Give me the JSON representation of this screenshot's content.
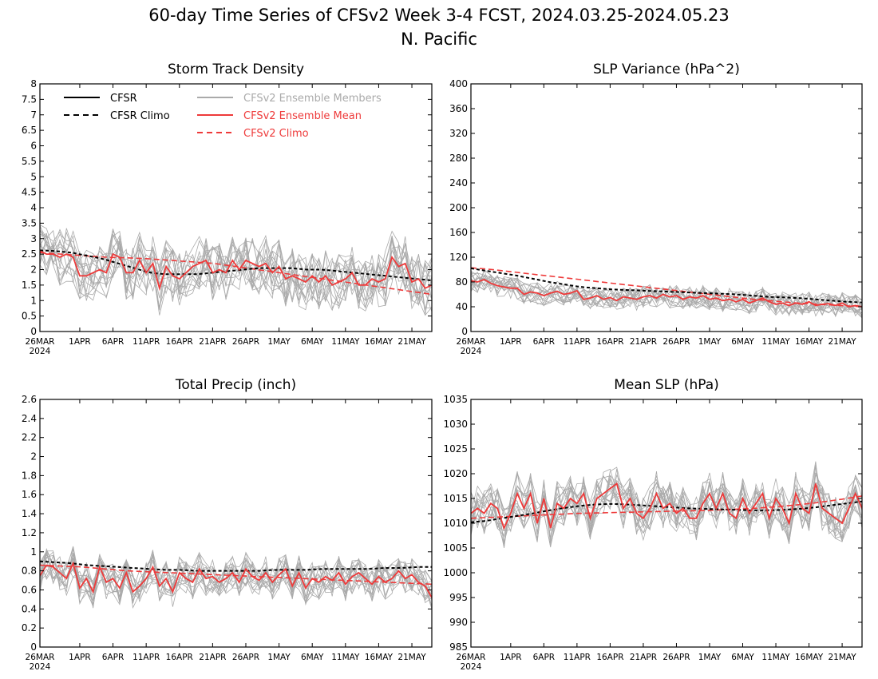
{
  "figure": {
    "title": "60-day Time Series of CFSv2 Week 3-4 FCST, 2024.03.25-2024.05.23",
    "subtitle": "N. Pacific"
  },
  "legend": {
    "entries": [
      {
        "label": "CFSR",
        "color": "#000000",
        "dashed": false
      },
      {
        "label": "CFSR Climo",
        "color": "#000000",
        "dashed": true
      },
      {
        "label": "CFSv2 Ensemble Members",
        "color": "#aaaaaa",
        "dashed": false
      },
      {
        "label": "CFSv2 Ensemble Mean",
        "color": "#ee3a3a",
        "dashed": false
      },
      {
        "label": "CFSv2 Climo",
        "color": "#ee3a3a",
        "dashed": true
      }
    ]
  },
  "x_axis": {
    "ticks": [
      {
        "day": 1,
        "label": "26MAR",
        "sublabel": "2024"
      },
      {
        "day": 7,
        "label": "1APR"
      },
      {
        "day": 12,
        "label": "6APR"
      },
      {
        "day": 17,
        "label": "11APR"
      },
      {
        "day": 22,
        "label": "16APR"
      },
      {
        "day": 27,
        "label": "21APR"
      },
      {
        "day": 32,
        "label": "26APR"
      },
      {
        "day": 37,
        "label": "1MAY"
      },
      {
        "day": 42,
        "label": "6MAY"
      },
      {
        "day": 47,
        "label": "11MAY"
      },
      {
        "day": 52,
        "label": "16MAY"
      },
      {
        "day": 57,
        "label": "21MAY"
      }
    ]
  },
  "colors": {
    "members": "#aaaaaa",
    "mean": "#ee3a3a",
    "cfsr": "#000000"
  },
  "chart_data": [
    {
      "type": "line",
      "title": "Storm Track Density",
      "ylim": [
        0,
        8
      ],
      "yticks": [
        "0",
        "0.5",
        "1",
        "1.5",
        "2",
        "2.5",
        "3",
        "3.5",
        "4",
        "4.5",
        "5",
        "5.5",
        "6",
        "6.5",
        "7",
        "7.5",
        "8"
      ],
      "ensemble_mean": [
        2.6,
        2.5,
        2.5,
        2.4,
        2.5,
        2.4,
        1.8,
        1.8,
        1.9,
        2.0,
        1.9,
        2.5,
        2.4,
        1.9,
        1.9,
        2.3,
        1.9,
        2.2,
        1.4,
        2.1,
        1.8,
        1.7,
        1.9,
        2.1,
        2.2,
        2.3,
        1.9,
        2.0,
        1.9,
        2.3,
        2.0,
        2.3,
        2.2,
        2.1,
        2.2,
        1.9,
        2.1,
        1.7,
        1.8,
        1.7,
        1.6,
        1.8,
        1.6,
        1.8,
        1.5,
        1.6,
        1.7,
        1.9,
        1.5,
        1.5,
        1.7,
        1.6,
        1.7,
        2.4,
        2.1,
        2.2,
        1.6,
        1.7,
        1.4,
        1.5
      ],
      "cfsr_climo": [
        2.62,
        2.6,
        2.55,
        2.45,
        2.35,
        2.2,
        2.05,
        1.9,
        1.85,
        1.85,
        1.85,
        1.9,
        1.95,
        2.0,
        2.05,
        2.05,
        2.05,
        2.0,
        2.0,
        1.95,
        1.9,
        1.85,
        1.8,
        1.75,
        1.7,
        1.65
      ],
      "cfsv2_climo": [
        2.55,
        2.5,
        2.45,
        2.4,
        2.38,
        2.35,
        2.3,
        2.25,
        2.2,
        2.1,
        2.0,
        1.9,
        1.8,
        1.7,
        1.6,
        1.5,
        1.4,
        1.3,
        1.2
      ],
      "member_spread": 0.9
    },
    {
      "type": "line",
      "title": "SLP Variance (hPa^2)",
      "ylim": [
        0,
        400
      ],
      "yticks": [
        "0",
        "40",
        "80",
        "120",
        "160",
        "200",
        "240",
        "280",
        "320",
        "360",
        "400"
      ],
      "ensemble_mean": [
        82,
        80,
        84,
        78,
        74,
        72,
        70,
        70,
        60,
        64,
        62,
        58,
        62,
        65,
        60,
        62,
        66,
        52,
        54,
        58,
        52,
        55,
        50,
        56,
        54,
        52,
        56,
        58,
        54,
        60,
        56,
        58,
        52,
        56,
        54,
        58,
        52,
        54,
        50,
        52,
        48,
        52,
        46,
        50,
        54,
        48,
        44,
        46,
        42,
        46,
        44,
        48,
        42,
        44,
        45,
        42,
        46,
        40,
        42,
        40
      ],
      "cfsr_climo": [
        102,
        98,
        94,
        90,
        85,
        80,
        76,
        72,
        70,
        68,
        67,
        66,
        65,
        64,
        63,
        62,
        61,
        60,
        58,
        56,
        55,
        54,
        52,
        50,
        48,
        47
      ],
      "cfsv2_climo": [
        103,
        100,
        96,
        92,
        88,
        84,
        80,
        76,
        72,
        68,
        64,
        60,
        56,
        52,
        49,
        46,
        44,
        42,
        40
      ],
      "member_spread": 18
    },
    {
      "type": "line",
      "title": "Total Precip (inch)",
      "ylim": [
        0,
        2.6
      ],
      "yticks": [
        "0",
        "0.2",
        "0.4",
        "0.6",
        "0.8",
        "1",
        "1.2",
        "1.4",
        "1.6",
        "1.8",
        "2",
        "2.2",
        "2.4",
        "2.6"
      ],
      "ensemble_mean": [
        0.75,
        0.86,
        0.84,
        0.78,
        0.72,
        0.88,
        0.62,
        0.72,
        0.58,
        0.84,
        0.68,
        0.72,
        0.62,
        0.78,
        0.58,
        0.64,
        0.72,
        0.84,
        0.64,
        0.72,
        0.58,
        0.78,
        0.72,
        0.68,
        0.82,
        0.72,
        0.74,
        0.68,
        0.72,
        0.78,
        0.68,
        0.82,
        0.74,
        0.7,
        0.78,
        0.68,
        0.76,
        0.82,
        0.64,
        0.78,
        0.62,
        0.72,
        0.68,
        0.74,
        0.7,
        0.78,
        0.66,
        0.74,
        0.78,
        0.72,
        0.66,
        0.74,
        0.68,
        0.72,
        0.8,
        0.72,
        0.76,
        0.68,
        0.64,
        0.52
      ],
      "cfsr_climo": [
        0.9,
        0.89,
        0.88,
        0.86,
        0.85,
        0.84,
        0.83,
        0.82,
        0.81,
        0.81,
        0.8,
        0.8,
        0.8,
        0.8,
        0.8,
        0.81,
        0.81,
        0.81,
        0.82,
        0.82,
        0.82,
        0.82,
        0.83,
        0.83,
        0.84,
        0.84
      ],
      "cfsv2_climo": [
        0.86,
        0.85,
        0.84,
        0.82,
        0.8,
        0.79,
        0.78,
        0.77,
        0.76,
        0.75,
        0.74,
        0.73,
        0.72,
        0.71,
        0.7,
        0.69,
        0.68,
        0.67,
        0.66
      ],
      "member_spread": 0.18
    },
    {
      "type": "line",
      "title": "Mean SLP (hPa)",
      "ylim": [
        985,
        1035
      ],
      "yticks": [
        "985",
        "990",
        "995",
        "1000",
        "1005",
        "1010",
        "1015",
        "1020",
        "1025",
        "1030",
        "1035"
      ],
      "ensemble_mean": [
        1012,
        1013,
        1012,
        1014,
        1013,
        1009,
        1012,
        1016,
        1013,
        1016,
        1010,
        1015,
        1009,
        1014,
        1013,
        1015,
        1014,
        1016,
        1011,
        1015,
        1016,
        1017,
        1018,
        1013,
        1015,
        1012,
        1011,
        1013,
        1016,
        1013,
        1014,
        1012,
        1013,
        1011,
        1011,
        1014,
        1016,
        1013,
        1016,
        1012,
        1011,
        1015,
        1012,
        1014,
        1016,
        1011,
        1015,
        1013,
        1010,
        1016,
        1013,
        1012,
        1018,
        1013,
        1012,
        1011,
        1010,
        1013,
        1016,
        1013
      ],
      "cfsr_climo": [
        1010.2,
        1010.5,
        1011.0,
        1011.5,
        1012.0,
        1012.6,
        1013.1,
        1013.5,
        1013.8,
        1013.9,
        1013.8,
        1013.6,
        1013.4,
        1013.2,
        1013.0,
        1012.9,
        1012.8,
        1012.7,
        1012.6,
        1012.6,
        1012.7,
        1012.9,
        1013.2,
        1013.6,
        1014.0,
        1014.4
      ],
      "cfsv2_climo": [
        1011.0,
        1011.2,
        1011.4,
        1011.6,
        1011.8,
        1012.0,
        1012.1,
        1012.2,
        1012.3,
        1012.4,
        1012.5,
        1012.6,
        1012.8,
        1013.0,
        1013.3,
        1013.7,
        1014.2,
        1014.8,
        1015.5
      ],
      "member_spread": 4.5
    }
  ]
}
